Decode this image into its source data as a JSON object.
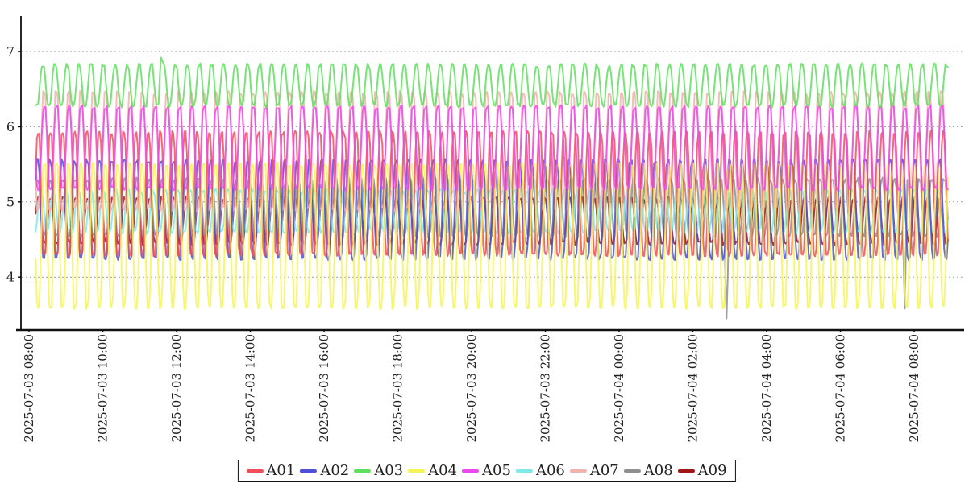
{
  "chart_data": {
    "type": "line",
    "title": "",
    "xlabel": "",
    "ylabel": "",
    "x_start": "2025-07-03 08:00",
    "x_end": "2025-07-04 08:55",
    "x_tick_interval_hours": 2,
    "x_tick_labels": [
      "2025-07-03 08:00",
      "2025-07-03 10:00",
      "2025-07-03 12:00",
      "2025-07-03 14:00",
      "2025-07-03 16:00",
      "2025-07-03 18:00",
      "2025-07-03 20:00",
      "2025-07-03 22:00",
      "2025-07-04 00:00",
      "2025-07-04 02:00",
      "2025-07-04 04:00",
      "2025-07-04 06:00",
      "2025-07-04 08:00"
    ],
    "yticks": [
      7,
      6,
      5,
      4
    ],
    "ylim": [
      3.3,
      7.47
    ],
    "grid": "horizontal-dashed",
    "legend_position": "bottom-center",
    "oscillation_sample_minutes": 2,
    "series": [
      {
        "name": "A01",
        "color": "#ee4f58",
        "min": 4.3,
        "max": 5.92,
        "period_minutes": 19.9,
        "phase": 0.5
      },
      {
        "name": "A02",
        "color": "#4f4fd8",
        "min": 4.25,
        "max": 5.55,
        "period_minutes": 20.1,
        "phase": 0.55
      },
      {
        "name": "A03",
        "color": "#5ee05e",
        "min": 6.28,
        "max": 6.82,
        "period_minutes": 19.6,
        "phase": 0.1
      },
      {
        "name": "A04",
        "color": "#f4f457",
        "min": 3.6,
        "max": 5.5,
        "period_minutes": 19.9,
        "phase": 0.0
      },
      {
        "name": "A05",
        "color": "#ee46ee",
        "min": 5.18,
        "max": 6.26,
        "period_minutes": 20.0,
        "phase": 0.0
      },
      {
        "name": "A06",
        "color": "#7fe9e9",
        "min": 4.6,
        "max": 5.15,
        "period_minutes": 20.3,
        "phase": 0.3
      },
      {
        "name": "A07",
        "color": "#f2b3ac",
        "min": 4.9,
        "max": 6.45,
        "period_minutes": 20.0,
        "phase": 0.02
      },
      {
        "name": "A08",
        "color": "#8f8f8f",
        "min": 4.55,
        "max": 5.3,
        "period_minutes": 20.2,
        "phase": 0.55
      },
      {
        "name": "A09",
        "color": "#a31414",
        "min": 4.45,
        "max": 5.05,
        "period_minutes": 20.1,
        "phase": 0.5
      }
    ],
    "anomalies": [
      {
        "series": "A03",
        "time": "2025-07-03 11:35",
        "value": 6.92
      },
      {
        "series": "A08",
        "time": "2025-07-04 02:55",
        "value": 3.45
      },
      {
        "series": "A08",
        "time": "2025-07-04 07:45",
        "value": 3.58
      }
    ],
    "draw_order": [
      "A09",
      "A08",
      "A06",
      "A07",
      "A02",
      "A01",
      "A04",
      "A05",
      "A03"
    ],
    "axis_color": "#111111",
    "gridline_color": "#999999"
  }
}
